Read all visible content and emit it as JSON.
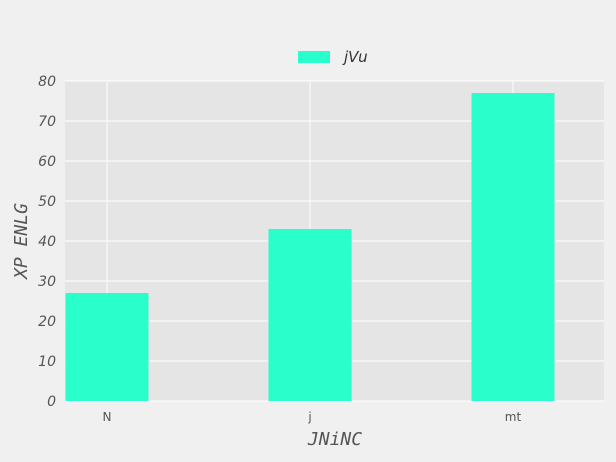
{
  "chart_data": {
    "type": "bar",
    "title": "",
    "xlabel": "JNiNC",
    "ylabel": "XP  ENLG",
    "categories": [
      "N",
      "j",
      "mt"
    ],
    "series": [
      {
        "name": "jVu",
        "values": [
          27,
          43,
          77
        ],
        "color": "#2affcc"
      }
    ],
    "ylim": [
      0,
      80
    ],
    "yticks": [
      0,
      10,
      20,
      30,
      40,
      50,
      60,
      70,
      80
    ],
    "grid": true,
    "legend_position": "top-center",
    "plot_background": "#e5e5e5",
    "grid_color": "#ffffff"
  }
}
